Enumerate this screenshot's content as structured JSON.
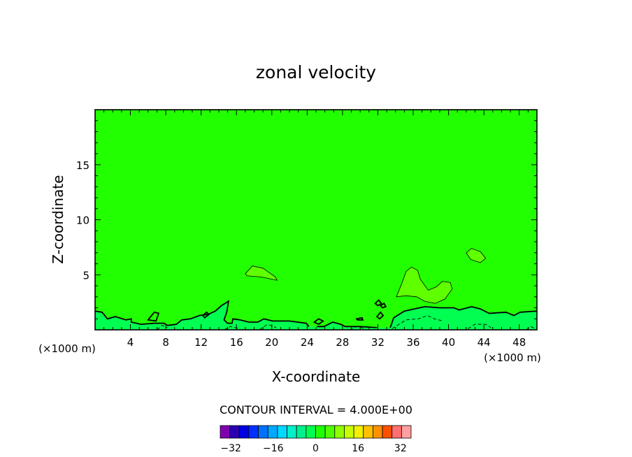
{
  "chart_data": {
    "type": "heatmap",
    "title": "zonal velocity",
    "xlabel": "X-coordinate",
    "ylabel": "Z-coordinate",
    "x_unit_left": "(×1000 m)",
    "x_unit_right": "(×1000 m)",
    "xlim": [
      0,
      50
    ],
    "ylim": [
      0,
      20
    ],
    "x_ticks": [
      4,
      8,
      12,
      16,
      20,
      24,
      28,
      32,
      36,
      40,
      44,
      48
    ],
    "y_ticks": [
      5,
      10,
      15
    ],
    "grid": false,
    "background_fill": "#22ff00",
    "contour_interval_label": "CONTOUR INTERVAL = 4.000E+00",
    "colorbar": {
      "min": -36,
      "max": 36,
      "step": 4,
      "tick_labels": [
        "-32",
        "-16",
        "0",
        "16",
        "32"
      ],
      "tick_values": [
        -32,
        -16,
        0,
        16,
        32
      ],
      "colors": [
        "#8000b0",
        "#2a00b0",
        "#0000e0",
        "#0030ff",
        "#0070ff",
        "#00a8ff",
        "#00d8ff",
        "#00f0c8",
        "#00f090",
        "#00ff50",
        "#22ff00",
        "#50ff00",
        "#90ff00",
        "#c8ff00",
        "#f0f000",
        "#ffc000",
        "#ff9000",
        "#ff5000",
        "#ff7070",
        "#ffa0a0"
      ]
    },
    "regions": [
      {
        "value": 4,
        "color": "#60ff00",
        "points": [
          [
            17,
            5.1
          ],
          [
            17.8,
            5.8
          ],
          [
            19,
            5.6
          ],
          [
            20.4,
            4.8
          ],
          [
            20.6,
            4.5
          ],
          [
            18.8,
            4.8
          ],
          [
            17.2,
            4.9
          ]
        ]
      },
      {
        "value": 4,
        "color": "#60ff00",
        "points": [
          [
            42,
            7.0
          ],
          [
            42.6,
            7.4
          ],
          [
            43.6,
            7.1
          ],
          [
            44.2,
            6.5
          ],
          [
            43.6,
            6.1
          ],
          [
            42.5,
            6.4
          ]
        ]
      },
      {
        "value": 4,
        "color": "#60ff00",
        "points": [
          [
            34.1,
            3.0
          ],
          [
            34.7,
            4.2
          ],
          [
            35.2,
            5.3
          ],
          [
            35.8,
            5.7
          ],
          [
            36.5,
            5.4
          ],
          [
            36.8,
            4.6
          ],
          [
            37.7,
            3.6
          ],
          [
            38.6,
            3.9
          ],
          [
            39.3,
            4.4
          ],
          [
            40.2,
            4.3
          ],
          [
            40.4,
            3.7
          ],
          [
            39.6,
            2.8
          ],
          [
            38.5,
            2.4
          ],
          [
            37.3,
            2.6
          ],
          [
            36.4,
            3.0
          ],
          [
            35.2,
            3.1
          ]
        ]
      },
      {
        "value": -4,
        "color": "#00ff50",
        "points": [
          [
            0,
            0
          ],
          [
            0,
            1.7
          ],
          [
            0.8,
            1.6
          ],
          [
            1.4,
            1.0
          ],
          [
            2.3,
            1.2
          ],
          [
            3.5,
            0.9
          ],
          [
            4.1,
            1.0
          ],
          [
            4.1,
            0.7
          ],
          [
            5.2,
            0.5
          ],
          [
            6.7,
            0.6
          ],
          [
            7.8,
            0.6
          ],
          [
            8.2,
            0.4
          ],
          [
            9.2,
            0.5
          ],
          [
            9.8,
            0.9
          ],
          [
            10.8,
            1.0
          ],
          [
            11.8,
            1.3
          ],
          [
            12.8,
            1.4
          ],
          [
            13.6,
            1.7
          ],
          [
            14.3,
            2.2
          ],
          [
            15.1,
            2.6
          ],
          [
            14.9,
            1.6
          ],
          [
            14.6,
            0.9
          ],
          [
            15.0,
            0.6
          ],
          [
            15.5,
            0.6
          ],
          [
            15.6,
            1.0
          ],
          [
            16.4,
            0.9
          ],
          [
            17.4,
            0.7
          ],
          [
            18.4,
            0.7
          ],
          [
            19.1,
            1.0
          ],
          [
            20.1,
            0.8
          ],
          [
            22.0,
            0.8
          ],
          [
            23.9,
            0.6
          ],
          [
            24.2,
            0.3
          ],
          [
            25.1,
            0.3
          ],
          [
            25.9,
            0.3
          ],
          [
            26.9,
            0.7
          ],
          [
            27.8,
            0.5
          ],
          [
            28.3,
            0.3
          ],
          [
            30.0,
            0.3
          ],
          [
            31.9,
            0.2
          ],
          [
            33.4,
            0.2
          ],
          [
            33.8,
            1.1
          ],
          [
            35.0,
            1.7
          ],
          [
            37.3,
            2.1
          ],
          [
            39.0,
            2.0
          ],
          [
            40.6,
            2.0
          ],
          [
            41.2,
            1.8
          ],
          [
            42.6,
            2.1
          ],
          [
            43.6,
            1.9
          ],
          [
            44.6,
            1.5
          ],
          [
            46.5,
            1.6
          ],
          [
            47.4,
            1.3
          ],
          [
            48.1,
            1.6
          ],
          [
            50,
            1.7
          ],
          [
            50,
            0
          ]
        ]
      }
    ],
    "contours": [
      {
        "value": 0,
        "style": "solid",
        "points": [
          [
            0,
            1.7
          ],
          [
            0.8,
            1.6
          ],
          [
            1.4,
            1.0
          ],
          [
            2.3,
            1.2
          ],
          [
            3.5,
            0.9
          ],
          [
            4.1,
            1.0
          ],
          [
            4.1,
            0.7
          ],
          [
            5.2,
            0.5
          ],
          [
            6.7,
            0.6
          ],
          [
            7.8,
            0.6
          ],
          [
            8.2,
            0.4
          ],
          [
            9.2,
            0.5
          ],
          [
            9.8,
            0.9
          ],
          [
            10.8,
            1.0
          ],
          [
            11.8,
            1.3
          ],
          [
            12.8,
            1.4
          ],
          [
            13.6,
            1.7
          ],
          [
            14.3,
            2.2
          ],
          [
            15.1,
            2.6
          ],
          [
            14.9,
            1.6
          ],
          [
            14.6,
            0.9
          ],
          [
            15.0,
            0.6
          ],
          [
            15.5,
            0.6
          ],
          [
            15.6,
            1.0
          ],
          [
            16.4,
            0.9
          ],
          [
            17.4,
            0.7
          ],
          [
            18.4,
            0.7
          ],
          [
            19.1,
            1.0
          ],
          [
            20.1,
            0.8
          ],
          [
            22.0,
            0.8
          ],
          [
            23.9,
            0.6
          ],
          [
            24.2,
            0.3
          ]
        ]
      },
      {
        "value": 0,
        "style": "solid",
        "points": [
          [
            25.1,
            0.3
          ],
          [
            25.9,
            0.3
          ],
          [
            26.9,
            0.7
          ],
          [
            27.8,
            0.5
          ],
          [
            28.3,
            0.3
          ],
          [
            30.0,
            0.3
          ],
          [
            31.9,
            0.2
          ]
        ]
      },
      {
        "value": 0,
        "style": "solid",
        "points": [
          [
            33.4,
            0.2
          ],
          [
            33.8,
            1.1
          ],
          [
            35.0,
            1.7
          ],
          [
            37.3,
            2.1
          ],
          [
            39.0,
            2.0
          ],
          [
            40.6,
            2.0
          ],
          [
            41.2,
            1.8
          ],
          [
            42.6,
            2.1
          ],
          [
            43.6,
            1.9
          ],
          [
            44.6,
            1.5
          ],
          [
            46.5,
            1.6
          ],
          [
            47.4,
            1.3
          ],
          [
            48.1,
            1.6
          ],
          [
            50,
            1.7
          ]
        ]
      },
      {
        "value": 0,
        "style": "solid",
        "closed": true,
        "points": [
          [
            6.0,
            0.9
          ],
          [
            6.7,
            1.6
          ],
          [
            7.2,
            1.5
          ],
          [
            6.9,
            0.8
          ]
        ]
      },
      {
        "value": 0,
        "style": "solid",
        "closed": true,
        "points": [
          [
            12.2,
            1.3
          ],
          [
            12.6,
            1.6
          ],
          [
            12.9,
            1.4
          ],
          [
            12.4,
            1.1
          ]
        ]
      },
      {
        "value": 0,
        "style": "solid",
        "closed": true,
        "points": [
          [
            24.8,
            0.7
          ],
          [
            25.3,
            1.0
          ],
          [
            25.8,
            0.8
          ],
          [
            25.3,
            0.5
          ]
        ]
      },
      {
        "value": 0,
        "style": "solid",
        "closed": true,
        "points": [
          [
            31.7,
            2.4
          ],
          [
            32.1,
            2.7
          ],
          [
            32.4,
            2.4
          ],
          [
            32.0,
            2.2
          ]
        ]
      },
      {
        "value": 0,
        "style": "solid",
        "closed": true,
        "points": [
          [
            32.3,
            2.2
          ],
          [
            32.7,
            2.4
          ],
          [
            32.9,
            2.1
          ],
          [
            32.5,
            2.0
          ]
        ]
      },
      {
        "value": 0,
        "style": "solid",
        "closed": true,
        "points": [
          [
            31.9,
            1.2
          ],
          [
            32.3,
            1.6
          ],
          [
            32.6,
            1.3
          ],
          [
            32.2,
            1.0
          ]
        ]
      },
      {
        "value": 0,
        "style": "solid",
        "closed": true,
        "points": [
          [
            29.6,
            1.0
          ],
          [
            30.2,
            1.1
          ],
          [
            30.3,
            0.9
          ],
          [
            29.7,
            0.9
          ]
        ]
      },
      {
        "value": 4,
        "style": "thin",
        "closed": true,
        "points": [
          [
            17,
            5.1
          ],
          [
            17.8,
            5.8
          ],
          [
            19,
            5.6
          ],
          [
            20.4,
            4.8
          ],
          [
            20.6,
            4.5
          ],
          [
            18.8,
            4.8
          ],
          [
            17.2,
            4.9
          ]
        ]
      },
      {
        "value": 4,
        "style": "thin",
        "closed": true,
        "points": [
          [
            42,
            7.0
          ],
          [
            42.6,
            7.4
          ],
          [
            43.6,
            7.1
          ],
          [
            44.2,
            6.5
          ],
          [
            43.6,
            6.1
          ],
          [
            42.5,
            6.4
          ]
        ]
      },
      {
        "value": 4,
        "style": "thin",
        "closed": true,
        "points": [
          [
            34.1,
            3.0
          ],
          [
            34.7,
            4.2
          ],
          [
            35.2,
            5.3
          ],
          [
            35.8,
            5.7
          ],
          [
            36.5,
            5.4
          ],
          [
            36.8,
            4.6
          ],
          [
            37.7,
            3.6
          ],
          [
            38.6,
            3.9
          ],
          [
            39.3,
            4.4
          ],
          [
            40.2,
            4.3
          ],
          [
            40.4,
            3.7
          ],
          [
            39.6,
            2.8
          ],
          [
            38.5,
            2.4
          ],
          [
            37.3,
            2.6
          ],
          [
            36.4,
            3.0
          ],
          [
            35.2,
            3.1
          ]
        ]
      },
      {
        "value": -4,
        "style": "dashed",
        "points": [
          [
            33.6,
            0.1
          ],
          [
            35.2,
            0.9
          ],
          [
            36.6,
            1.0
          ],
          [
            37.6,
            1.3
          ],
          [
            38.4,
            1.0
          ],
          [
            39.4,
            0.8
          ]
        ]
      },
      {
        "value": -4,
        "style": "dashed",
        "points": [
          [
            42.2,
            0.1
          ],
          [
            43.0,
            0.5
          ],
          [
            44.2,
            0.5
          ],
          [
            44.8,
            0.2
          ]
        ]
      },
      {
        "value": -4,
        "style": "dashed",
        "points": [
          [
            7.0,
            0.0
          ],
          [
            7.6,
            0.4
          ],
          [
            8.2,
            0.2
          ]
        ]
      },
      {
        "value": -4,
        "style": "dashed",
        "points": [
          [
            14.6,
            0.0
          ],
          [
            15.3,
            0.3
          ],
          [
            16.4,
            0.1
          ]
        ]
      },
      {
        "value": -4,
        "style": "dashed",
        "points": [
          [
            18.6,
            0.0
          ],
          [
            19.5,
            0.5
          ],
          [
            20.5,
            0.2
          ]
        ]
      },
      {
        "value": -4,
        "style": "dashed",
        "points": [
          [
            28.8,
            0.0
          ],
          [
            29.6,
            0.3
          ],
          [
            30.6,
            0.1
          ]
        ]
      },
      {
        "value": -4,
        "style": "dashed",
        "points": [
          [
            48.8,
            0.0
          ],
          [
            49.3,
            0.3
          ],
          [
            49.8,
            0.1
          ]
        ]
      }
    ]
  }
}
